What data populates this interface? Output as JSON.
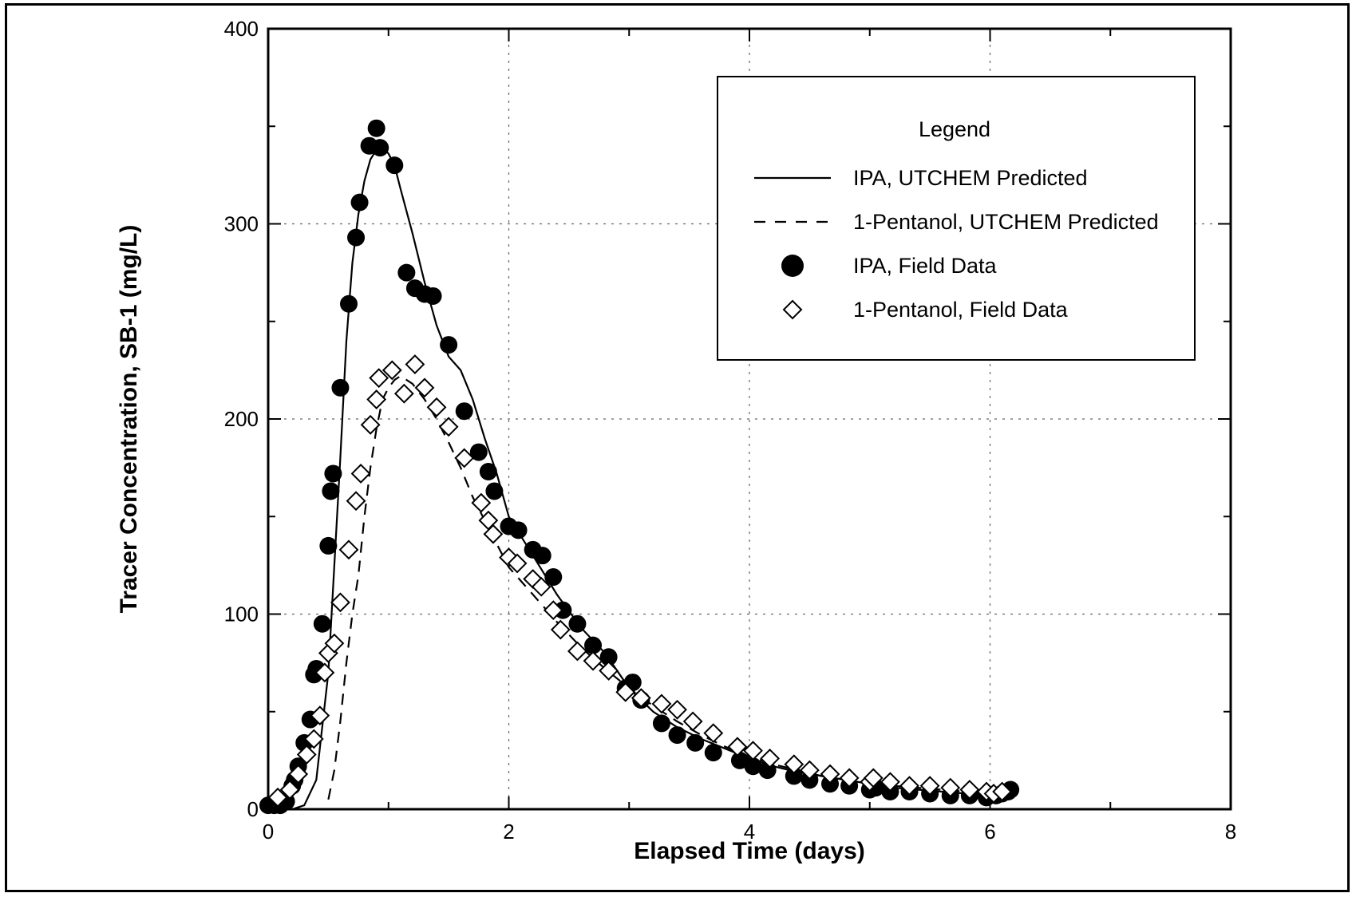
{
  "chart_data": {
    "type": "scatter",
    "xlabel": "Elapsed Time (days)",
    "ylabel": "Tracer Concentration, SB-1 (mg/L)",
    "xlim": [
      0,
      8
    ],
    "ylim": [
      0,
      400
    ],
    "x_ticks": [
      0,
      2,
      4,
      6,
      8
    ],
    "y_ticks": [
      0,
      100,
      200,
      300,
      400
    ],
    "grid": true,
    "legend": {
      "title": "Legend",
      "position": "top-right"
    },
    "series": [
      {
        "name": "IPA, UTCHEM Predicted",
        "kind": "line",
        "dash": "solid",
        "x": [
          0.0,
          0.1,
          0.2,
          0.3,
          0.4,
          0.5,
          0.6,
          0.65,
          0.7,
          0.75,
          0.8,
          0.85,
          0.9,
          0.95,
          1.0,
          1.05,
          1.1,
          1.2,
          1.3,
          1.4,
          1.5,
          1.6,
          1.7,
          1.8,
          1.9,
          2.0,
          2.2,
          2.4,
          2.6,
          2.8,
          3.0,
          3.2,
          3.4,
          3.6,
          3.8,
          4.0,
          4.2,
          4.4,
          4.6,
          4.8,
          5.0,
          5.2,
          5.4,
          5.6,
          5.8,
          6.0,
          6.2
        ],
        "y": [
          0,
          0,
          0,
          2,
          15,
          70,
          180,
          240,
          280,
          305,
          322,
          333,
          338,
          339,
          336,
          330,
          318,
          295,
          270,
          248,
          232,
          225,
          210,
          190,
          172,
          150,
          130,
          110,
          93,
          80,
          62,
          50,
          42,
          36,
          31,
          26,
          22,
          19,
          17,
          15,
          13,
          11,
          10,
          9,
          8,
          7,
          6
        ]
      },
      {
        "name": "1-Pentanol, UTCHEM Predicted",
        "kind": "line",
        "dash": "dashed",
        "x": [
          0.5,
          0.55,
          0.6,
          0.65,
          0.7,
          0.75,
          0.8,
          0.85,
          0.9,
          0.95,
          1.0,
          1.05,
          1.1,
          1.2,
          1.3,
          1.4,
          1.5,
          1.6,
          1.7,
          1.8,
          1.9,
          2.0,
          2.2,
          2.4,
          2.6,
          2.8,
          3.0,
          3.2,
          3.4,
          3.6,
          3.8,
          4.0,
          4.2,
          4.4,
          4.6,
          4.8,
          5.0,
          5.2,
          5.4,
          5.6,
          5.8,
          6.0,
          6.2
        ],
        "y": [
          5,
          20,
          45,
          75,
          100,
          120,
          150,
          175,
          195,
          210,
          216,
          220,
          222,
          218,
          210,
          200,
          188,
          175,
          160,
          148,
          136,
          124,
          110,
          96,
          83,
          72,
          62,
          53,
          45,
          38,
          32,
          27,
          23,
          20,
          17,
          15,
          13,
          12,
          11,
          10,
          9,
          8,
          7
        ]
      },
      {
        "name": "IPA, Field Data",
        "kind": "marker",
        "marker": "filled-circle",
        "x": [
          0.0,
          0.05,
          0.1,
          0.15,
          0.2,
          0.22,
          0.25,
          0.3,
          0.35,
          0.38,
          0.4,
          0.45,
          0.5,
          0.52,
          0.54,
          0.6,
          0.67,
          0.73,
          0.76,
          0.84,
          0.9,
          0.93,
          1.05,
          1.15,
          1.22,
          1.3,
          1.37,
          1.5,
          1.63,
          1.75,
          1.83,
          1.88,
          2.0,
          2.08,
          2.2,
          2.28,
          2.37,
          2.45,
          2.57,
          2.7,
          2.83,
          2.97,
          3.03,
          3.1,
          3.27,
          3.4,
          3.55,
          3.7,
          3.92,
          4.03,
          4.15,
          4.37,
          4.5,
          4.67,
          4.83,
          5.0,
          5.05,
          5.17,
          5.33,
          5.5,
          5.67,
          5.83,
          5.97,
          6.05,
          6.1,
          6.15,
          6.17
        ],
        "y": [
          2,
          2,
          2,
          4,
          12,
          15,
          22,
          34,
          46,
          69,
          72,
          95,
          135,
          163,
          172,
          216,
          259,
          293,
          311,
          340,
          349,
          339,
          330,
          275,
          267,
          264,
          263,
          238,
          204,
          183,
          173,
          163,
          145,
          143,
          133,
          130,
          119,
          102,
          95,
          84,
          78,
          62,
          65,
          56,
          44,
          38,
          34,
          29,
          25,
          22,
          20,
          17,
          15,
          13,
          12,
          10,
          11,
          9,
          9,
          8,
          7,
          7,
          6,
          7,
          8,
          9,
          10
        ]
      },
      {
        "name": "1-Pentanol, Field Data",
        "kind": "marker",
        "marker": "open-diamond",
        "x": [
          0.08,
          0.18,
          0.25,
          0.32,
          0.38,
          0.43,
          0.47,
          0.5,
          0.55,
          0.6,
          0.67,
          0.73,
          0.77,
          0.85,
          0.9,
          0.92,
          1.03,
          1.13,
          1.22,
          1.3,
          1.4,
          1.5,
          1.63,
          1.77,
          1.83,
          1.87,
          2.0,
          2.07,
          2.2,
          2.27,
          2.37,
          2.43,
          2.57,
          2.7,
          2.83,
          2.97,
          3.1,
          3.27,
          3.4,
          3.53,
          3.7,
          3.9,
          4.03,
          4.17,
          4.37,
          4.5,
          4.67,
          4.83,
          5.0,
          5.03,
          5.17,
          5.33,
          5.5,
          5.67,
          5.83,
          5.97,
          6.03,
          6.1
        ],
        "y": [
          6,
          10,
          18,
          28,
          36,
          48,
          70,
          80,
          85,
          106,
          133,
          158,
          172,
          197,
          210,
          221,
          225,
          213,
          228,
          216,
          206,
          196,
          180,
          157,
          148,
          141,
          129,
          126,
          118,
          114,
          102,
          92,
          81,
          76,
          71,
          60,
          57,
          54,
          51,
          45,
          39,
          32,
          30,
          26,
          23,
          20,
          18,
          16,
          14,
          16,
          14,
          12,
          12,
          11,
          10,
          9,
          8,
          9
        ]
      }
    ]
  }
}
